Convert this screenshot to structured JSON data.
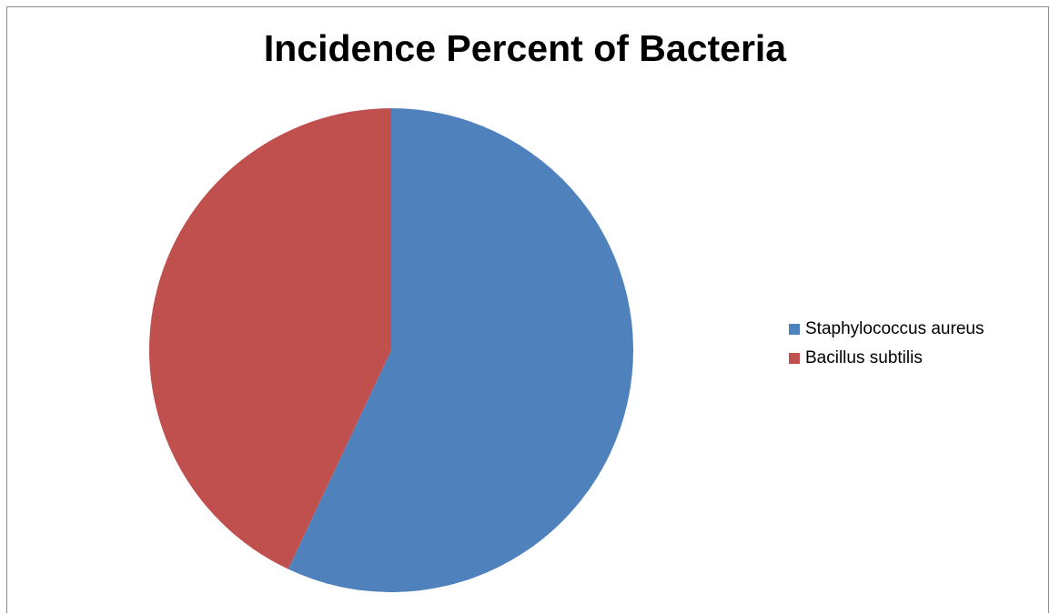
{
  "chart_data": {
    "type": "pie",
    "title": "Incidence Percent of Bacteria",
    "categories": [
      "Staphylococcus aureus",
      "Bacillus subtilis"
    ],
    "values": [
      57,
      43
    ],
    "colors": [
      "#4f81bd",
      "#c0504d"
    ],
    "legend_position": "right",
    "start_angle": "12 o'clock",
    "direction": "clockwise"
  }
}
